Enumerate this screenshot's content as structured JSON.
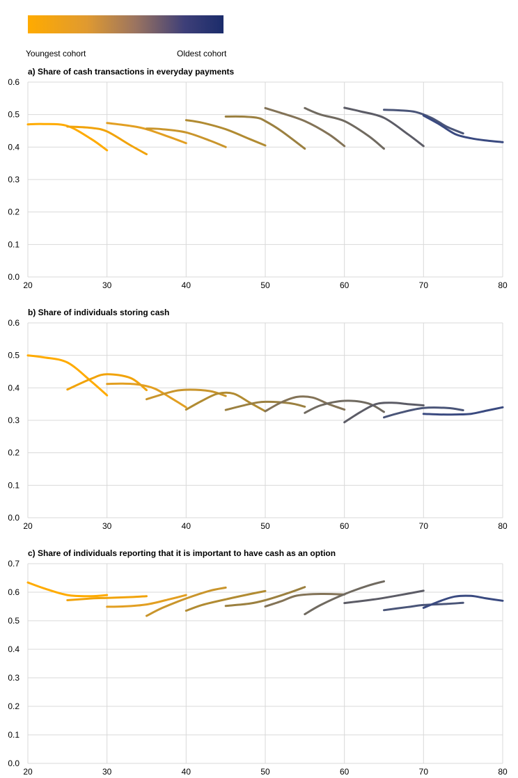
{
  "legend": {
    "youngest_label": "Youngest cohort",
    "oldest_label": "Oldest cohort",
    "colors": [
      "#ffab00",
      "#f1a30a",
      "#e29f22",
      "#c9952c",
      "#b18b32",
      "#9b8040",
      "#837357",
      "#706a60",
      "#5c5c66",
      "#4a5578",
      "#3a4a80",
      "#1b2c6b"
    ]
  },
  "chart_data": [
    {
      "type": "line",
      "title": "a) Share of cash transactions in everyday payments",
      "xlabel": "",
      "ylabel": "",
      "xlim": [
        20,
        80
      ],
      "ylim": [
        0,
        0.6
      ],
      "xticks": [
        "20",
        "30",
        "40",
        "50",
        "60",
        "70",
        "80"
      ],
      "yticks": [
        "0.0",
        "0.1",
        "0.2",
        "0.3",
        "0.4",
        "0.5",
        "0.6"
      ],
      "grid": true,
      "series": [
        {
          "x": [
            20,
            22,
            25,
            28,
            30
          ],
          "y": [
            0.47,
            0.471,
            0.465,
            0.425,
            0.39
          ]
        },
        {
          "x": [
            25,
            28,
            30,
            33,
            35
          ],
          "y": [
            0.463,
            0.459,
            0.448,
            0.405,
            0.378
          ]
        },
        {
          "x": [
            30,
            33,
            35,
            38,
            40
          ],
          "y": [
            0.474,
            0.465,
            0.455,
            0.43,
            0.412
          ]
        },
        {
          "x": [
            35,
            37,
            40,
            43,
            45
          ],
          "y": [
            0.457,
            0.455,
            0.445,
            0.42,
            0.4
          ]
        },
        {
          "x": [
            40,
            42,
            45,
            48,
            50
          ],
          "y": [
            0.483,
            0.475,
            0.455,
            0.425,
            0.405
          ]
        },
        {
          "x": [
            45,
            47,
            49,
            50,
            52,
            55
          ],
          "y": [
            0.494,
            0.494,
            0.49,
            0.48,
            0.45,
            0.395
          ]
        },
        {
          "x": [
            50,
            52,
            55,
            58,
            60
          ],
          "y": [
            0.52,
            0.505,
            0.48,
            0.44,
            0.403
          ]
        },
        {
          "x": [
            55,
            57,
            60,
            63,
            65
          ],
          "y": [
            0.52,
            0.5,
            0.48,
            0.435,
            0.395
          ]
        },
        {
          "x": [
            60,
            62,
            65,
            68,
            70
          ],
          "y": [
            0.521,
            0.51,
            0.49,
            0.44,
            0.403
          ]
        },
        {
          "x": [
            65,
            67,
            69,
            71,
            73,
            75
          ],
          "y": [
            0.515,
            0.513,
            0.508,
            0.49,
            0.462,
            0.442
          ]
        },
        {
          "x": [
            70,
            72,
            74,
            76,
            78,
            80
          ],
          "y": [
            0.497,
            0.47,
            0.44,
            0.427,
            0.42,
            0.415
          ]
        }
      ]
    },
    {
      "type": "line",
      "title": "b) Share of individuals storing cash",
      "xlabel": "",
      "ylabel": "",
      "xlim": [
        20,
        80
      ],
      "ylim": [
        0,
        0.6
      ],
      "xticks": [
        "20",
        "30",
        "40",
        "50",
        "60",
        "70",
        "80"
      ],
      "yticks": [
        "0.0",
        "0.1",
        "0.2",
        "0.3",
        "0.4",
        "0.5",
        "0.6"
      ],
      "grid": true,
      "series": [
        {
          "x": [
            20,
            22,
            25,
            28,
            30
          ],
          "y": [
            0.5,
            0.494,
            0.478,
            0.42,
            0.377
          ]
        },
        {
          "x": [
            25,
            28,
            30,
            33,
            35
          ],
          "y": [
            0.395,
            0.428,
            0.442,
            0.43,
            0.393
          ]
        },
        {
          "x": [
            30,
            32,
            34,
            36,
            38,
            40
          ],
          "y": [
            0.412,
            0.413,
            0.41,
            0.398,
            0.37,
            0.34
          ]
        },
        {
          "x": [
            35,
            38,
            40,
            43,
            45
          ],
          "y": [
            0.365,
            0.387,
            0.394,
            0.39,
            0.375
          ]
        },
        {
          "x": [
            40,
            42,
            44,
            46,
            48,
            50
          ],
          "y": [
            0.333,
            0.36,
            0.382,
            0.382,
            0.355,
            0.328
          ]
        },
        {
          "x": [
            45,
            48,
            50,
            53,
            55
          ],
          "y": [
            0.332,
            0.35,
            0.357,
            0.353,
            0.342
          ]
        },
        {
          "x": [
            50,
            52,
            54,
            56,
            58,
            60
          ],
          "y": [
            0.328,
            0.355,
            0.372,
            0.37,
            0.35,
            0.333
          ]
        },
        {
          "x": [
            55,
            57,
            60,
            63,
            65
          ],
          "y": [
            0.323,
            0.346,
            0.36,
            0.352,
            0.326
          ]
        },
        {
          "x": [
            60,
            62,
            64,
            66,
            68,
            70
          ],
          "y": [
            0.294,
            0.325,
            0.35,
            0.354,
            0.35,
            0.346
          ]
        },
        {
          "x": [
            65,
            67,
            70,
            73,
            75
          ],
          "y": [
            0.309,
            0.323,
            0.338,
            0.338,
            0.331
          ]
        },
        {
          "x": [
            70,
            72,
            74,
            76,
            78,
            80
          ],
          "y": [
            0.32,
            0.318,
            0.318,
            0.32,
            0.33,
            0.34
          ]
        }
      ]
    },
    {
      "type": "line",
      "title": "c) Share of individuals reporting that it is important to have cash as an option",
      "xlabel": "",
      "ylabel": "",
      "xlim": [
        20,
        80
      ],
      "ylim": [
        0,
        0.7
      ],
      "xticks": [
        "20",
        "30",
        "40",
        "50",
        "60",
        "70",
        "80"
      ],
      "yticks": [
        "0.0",
        "0.1",
        "0.2",
        "0.3",
        "0.4",
        "0.5",
        "0.6",
        "0.7"
      ],
      "grid": true,
      "series": [
        {
          "x": [
            20,
            22,
            25,
            28,
            30
          ],
          "y": [
            0.634,
            0.614,
            0.59,
            0.586,
            0.59
          ]
        },
        {
          "x": [
            25,
            28,
            30,
            33,
            35
          ],
          "y": [
            0.572,
            0.578,
            0.58,
            0.583,
            0.586
          ]
        },
        {
          "x": [
            30,
            32,
            35,
            38,
            40
          ],
          "y": [
            0.549,
            0.55,
            0.557,
            0.576,
            0.59
          ]
        },
        {
          "x": [
            35,
            37,
            40,
            43,
            45
          ],
          "y": [
            0.517,
            0.545,
            0.578,
            0.605,
            0.616
          ]
        },
        {
          "x": [
            40,
            42,
            45,
            48,
            50
          ],
          "y": [
            0.535,
            0.555,
            0.575,
            0.593,
            0.604
          ]
        },
        {
          "x": [
            45,
            48,
            50,
            53,
            55
          ],
          "y": [
            0.552,
            0.56,
            0.572,
            0.598,
            0.618
          ]
        },
        {
          "x": [
            50,
            52,
            54,
            57,
            60
          ],
          "y": [
            0.55,
            0.568,
            0.588,
            0.594,
            0.592
          ]
        },
        {
          "x": [
            55,
            57,
            60,
            63,
            65
          ],
          "y": [
            0.523,
            0.555,
            0.593,
            0.623,
            0.638
          ]
        },
        {
          "x": [
            60,
            63,
            65,
            68,
            70
          ],
          "y": [
            0.562,
            0.572,
            0.58,
            0.595,
            0.605
          ]
        },
        {
          "x": [
            65,
            68,
            70,
            73,
            75
          ],
          "y": [
            0.537,
            0.548,
            0.555,
            0.559,
            0.563
          ]
        },
        {
          "x": [
            70,
            72,
            74,
            76,
            78,
            80
          ],
          "y": [
            0.545,
            0.568,
            0.585,
            0.587,
            0.578,
            0.57
          ]
        }
      ]
    }
  ]
}
